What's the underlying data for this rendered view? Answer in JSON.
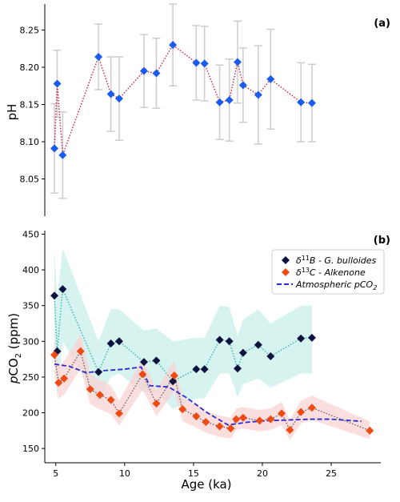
{
  "colors": {
    "ph_marker": "#1a5cf0",
    "ph_line": "#cc1f3a",
    "errorbar": "#cccccc",
    "boron_marker": "#0d1340",
    "boron_line": "#2fb5a8",
    "boron_band": "#c8efeb",
    "alkenone_marker": "#ee4a12",
    "alkenone_line": "#555555",
    "alkenone_band": "#f9d3d3",
    "atm_line": "#2a2ad0"
  },
  "x_axis": {
    "label": "Age (ka)",
    "xlim": [
      4.2,
      28.6
    ],
    "ticks": [
      5,
      10,
      15,
      20,
      25
    ],
    "tick_labels": [
      "5",
      "10",
      "15",
      "20",
      "25"
    ]
  },
  "chart_data": [
    {
      "type": "scatter",
      "panel_tag": "(a)",
      "ylabel": "pH",
      "ylim": [
        8.0,
        8.285
      ],
      "y_ticks": [
        8.05,
        8.1,
        8.15,
        8.2,
        8.25
      ],
      "y_tick_labels": [
        "8.05",
        "8.10",
        "8.15",
        "8.20",
        "8.25"
      ],
      "series": [
        {
          "marker": "diamond",
          "points": [
            {
              "x": 4.9,
              "y": 8.091,
              "err": 0.06
            },
            {
              "x": 5.1,
              "y": 8.178,
              "err": 0.045
            },
            {
              "x": 5.5,
              "y": 8.082,
              "err": 0.058
            },
            {
              "x": 8.1,
              "y": 8.214,
              "err": 0.044
            },
            {
              "x": 9.0,
              "y": 8.164,
              "err": 0.05
            },
            {
              "x": 9.6,
              "y": 8.158,
              "err": 0.056
            },
            {
              "x": 11.4,
              "y": 8.195,
              "err": 0.049
            },
            {
              "x": 12.3,
              "y": 8.192,
              "err": 0.047
            },
            {
              "x": 13.5,
              "y": 8.23,
              "err": 0.055
            },
            {
              "x": 15.2,
              "y": 8.206,
              "err": 0.05
            },
            {
              "x": 15.8,
              "y": 8.205,
              "err": 0.05
            },
            {
              "x": 16.9,
              "y": 8.153,
              "err": 0.05
            },
            {
              "x": 17.6,
              "y": 8.156,
              "err": 0.055
            },
            {
              "x": 18.2,
              "y": 8.207,
              "err": 0.055
            },
            {
              "x": 18.6,
              "y": 8.176,
              "err": 0.05
            },
            {
              "x": 19.7,
              "y": 8.163,
              "err": 0.066
            },
            {
              "x": 20.6,
              "y": 8.184,
              "err": 0.067
            },
            {
              "x": 22.8,
              "y": 8.153,
              "err": 0.053
            },
            {
              "x": 23.6,
              "y": 8.152,
              "err": 0.052
            }
          ]
        }
      ]
    },
    {
      "type": "line",
      "panel_tag": "(b)",
      "ylabel": "pCO2 (ppm)",
      "ylim": [
        130,
        455
      ],
      "y_ticks": [
        150,
        200,
        250,
        300,
        350,
        400,
        450
      ],
      "y_tick_labels": [
        "150",
        "200",
        "250",
        "300",
        "350",
        "400",
        "450"
      ],
      "legend": {
        "position": "top-right",
        "entries": [
          {
            "key": "boron",
            "text_a": "δ11B - G. bulloides"
          },
          {
            "key": "alkenone",
            "text_a": "δ13C - Alkenone"
          },
          {
            "key": "atm",
            "text_a": "Atmospheric pCO2"
          }
        ]
      },
      "series": [
        {
          "name": "δ11B - G. bulloides",
          "marker": "diamond",
          "points": [
            {
              "x": 4.9,
              "y": 364
            },
            {
              "x": 5.1,
              "y": 286
            },
            {
              "x": 5.5,
              "y": 373
            },
            {
              "x": 8.1,
              "y": 257
            },
            {
              "x": 9.0,
              "y": 297
            },
            {
              "x": 9.6,
              "y": 300
            },
            {
              "x": 11.4,
              "y": 271
            },
            {
              "x": 12.3,
              "y": 273
            },
            {
              "x": 13.5,
              "y": 244
            },
            {
              "x": 15.2,
              "y": 261
            },
            {
              "x": 15.8,
              "y": 261
            },
            {
              "x": 16.9,
              "y": 302
            },
            {
              "x": 17.6,
              "y": 300
            },
            {
              "x": 18.2,
              "y": 262
            },
            {
              "x": 18.6,
              "y": 284
            },
            {
              "x": 19.7,
              "y": 295
            },
            {
              "x": 20.6,
              "y": 279
            },
            {
              "x": 22.8,
              "y": 304
            },
            {
              "x": 23.6,
              "y": 305
            }
          ],
          "band": [
            {
              "x": 4.9,
              "lo": 290,
              "hi": 425
            },
            {
              "x": 5.1,
              "lo": 220,
              "hi": 360
            },
            {
              "x": 5.5,
              "lo": 300,
              "hi": 430
            },
            {
              "x": 8.1,
              "lo": 215,
              "hi": 300
            },
            {
              "x": 9.0,
              "lo": 250,
              "hi": 345
            },
            {
              "x": 9.6,
              "lo": 255,
              "hi": 345
            },
            {
              "x": 11.4,
              "lo": 228,
              "hi": 315
            },
            {
              "x": 12.3,
              "lo": 230,
              "hi": 318
            },
            {
              "x": 13.5,
              "lo": 205,
              "hi": 300
            },
            {
              "x": 15.2,
              "lo": 220,
              "hi": 305
            },
            {
              "x": 15.8,
              "lo": 220,
              "hi": 305
            },
            {
              "x": 16.9,
              "lo": 255,
              "hi": 350
            },
            {
              "x": 17.6,
              "lo": 255,
              "hi": 348
            },
            {
              "x": 18.2,
              "lo": 222,
              "hi": 308
            },
            {
              "x": 18.6,
              "lo": 240,
              "hi": 330
            },
            {
              "x": 19.7,
              "lo": 248,
              "hi": 345
            },
            {
              "x": 20.6,
              "lo": 235,
              "hi": 325
            },
            {
              "x": 22.8,
              "lo": 255,
              "hi": 350
            },
            {
              "x": 23.6,
              "lo": 255,
              "hi": 350
            }
          ]
        },
        {
          "name": "δ13C - Alkenone",
          "marker": "diamond",
          "points": [
            {
              "x": 4.9,
              "y": 281
            },
            {
              "x": 5.2,
              "y": 242
            },
            {
              "x": 5.6,
              "y": 248
            },
            {
              "x": 6.8,
              "y": 286
            },
            {
              "x": 7.5,
              "y": 233
            },
            {
              "x": 8.2,
              "y": 225
            },
            {
              "x": 9.0,
              "y": 218
            },
            {
              "x": 9.6,
              "y": 199
            },
            {
              "x": 11.3,
              "y": 254
            },
            {
              "x": 12.3,
              "y": 213
            },
            {
              "x": 13.6,
              "y": 252
            },
            {
              "x": 14.2,
              "y": 205
            },
            {
              "x": 15.2,
              "y": 195
            },
            {
              "x": 15.9,
              "y": 187
            },
            {
              "x": 16.9,
              "y": 181
            },
            {
              "x": 17.7,
              "y": 178
            },
            {
              "x": 18.1,
              "y": 191
            },
            {
              "x": 18.6,
              "y": 193
            },
            {
              "x": 19.8,
              "y": 189
            },
            {
              "x": 20.6,
              "y": 191
            },
            {
              "x": 21.4,
              "y": 199
            },
            {
              "x": 22.0,
              "y": 176
            },
            {
              "x": 22.8,
              "y": 201
            },
            {
              "x": 23.6,
              "y": 207
            },
            {
              "x": 27.8,
              "y": 175
            }
          ],
          "band": [
            {
              "x": 4.9,
              "lo": 255,
              "hi": 305
            },
            {
              "x": 5.2,
              "lo": 220,
              "hi": 265
            },
            {
              "x": 5.6,
              "lo": 225,
              "hi": 272
            },
            {
              "x": 6.8,
              "lo": 262,
              "hi": 310
            },
            {
              "x": 7.5,
              "lo": 212,
              "hi": 255
            },
            {
              "x": 8.2,
              "lo": 205,
              "hi": 246
            },
            {
              "x": 9.0,
              "lo": 198,
              "hi": 238
            },
            {
              "x": 9.6,
              "lo": 182,
              "hi": 217
            },
            {
              "x": 11.3,
              "lo": 232,
              "hi": 276
            },
            {
              "x": 12.3,
              "lo": 195,
              "hi": 232
            },
            {
              "x": 13.6,
              "lo": 230,
              "hi": 274
            },
            {
              "x": 14.2,
              "lo": 188,
              "hi": 222
            },
            {
              "x": 15.2,
              "lo": 179,
              "hi": 211
            },
            {
              "x": 15.9,
              "lo": 172,
              "hi": 202
            },
            {
              "x": 16.9,
              "lo": 166,
              "hi": 196
            },
            {
              "x": 17.7,
              "lo": 164,
              "hi": 193
            },
            {
              "x": 18.1,
              "lo": 176,
              "hi": 206
            },
            {
              "x": 18.6,
              "lo": 178,
              "hi": 208
            },
            {
              "x": 19.8,
              "lo": 174,
              "hi": 204
            },
            {
              "x": 20.6,
              "lo": 176,
              "hi": 206
            },
            {
              "x": 21.4,
              "lo": 183,
              "hi": 215
            },
            {
              "x": 22.0,
              "lo": 162,
              "hi": 190
            },
            {
              "x": 22.8,
              "lo": 185,
              "hi": 217
            },
            {
              "x": 23.6,
              "lo": 190,
              "hi": 224
            },
            {
              "x": 27.8,
              "lo": 163,
              "hi": 188
            }
          ]
        },
        {
          "name": "Atmospheric pCO2",
          "style": "dashed",
          "points": [
            {
              "x": 4.9,
              "y": 268
            },
            {
              "x": 6.0,
              "y": 265
            },
            {
              "x": 7.2,
              "y": 256
            },
            {
              "x": 8.5,
              "y": 259
            },
            {
              "x": 10.0,
              "y": 261
            },
            {
              "x": 11.2,
              "y": 264
            },
            {
              "x": 11.8,
              "y": 238
            },
            {
              "x": 13.2,
              "y": 236
            },
            {
              "x": 14.5,
              "y": 221
            },
            {
              "x": 16.0,
              "y": 200
            },
            {
              "x": 17.5,
              "y": 183
            },
            {
              "x": 19.0,
              "y": 187
            },
            {
              "x": 20.5,
              "y": 189
            },
            {
              "x": 22.0,
              "y": 190
            },
            {
              "x": 23.5,
              "y": 191
            },
            {
              "x": 25.0,
              "y": 191
            },
            {
              "x": 27.2,
              "y": 188
            }
          ]
        }
      ]
    }
  ]
}
